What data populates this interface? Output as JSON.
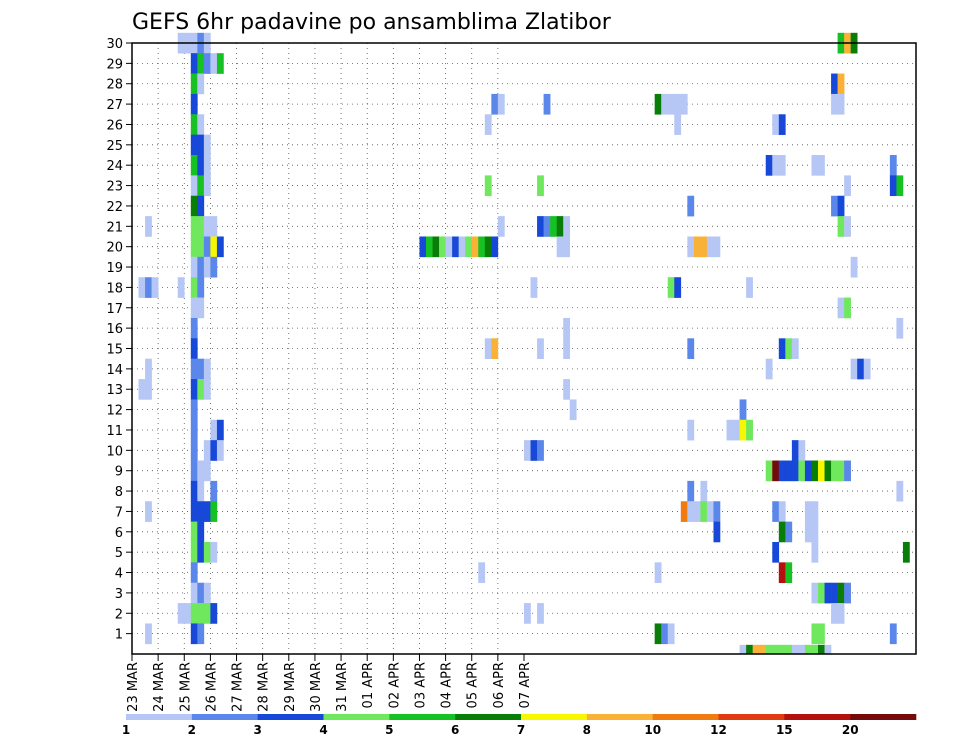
{
  "chart_data": {
    "type": "heatmap",
    "title": "GEFS 6hr padavine po ansamblima Zlatibor",
    "xlabel": "",
    "ylabel": "",
    "y_ticks": [
      "1",
      "2",
      "3",
      "4",
      "5",
      "6",
      "7",
      "8",
      "9",
      "10",
      "11",
      "12",
      "13",
      "14",
      "15",
      "16",
      "17",
      "18",
      "19",
      "20",
      "21",
      "22",
      "23",
      "24",
      "25",
      "26",
      "27",
      "28",
      "29",
      "30"
    ],
    "x_ticks": [
      "23 MAR",
      "24 MAR",
      "25 MAR",
      "26 MAR",
      "27 MAR",
      "28 MAR",
      "29 MAR",
      "30 MAR",
      "31 MAR",
      "01 APR",
      "02 APR",
      "03 APR",
      "04 APR",
      "05 APR",
      "06 APR",
      "07 APR"
    ],
    "x_unit": "6h steps from 23 MAR 00UTC (4 per day)",
    "grid": true,
    "colorbar": {
      "labels": [
        "1",
        "2",
        "3",
        "4",
        "5",
        "6",
        "7",
        "8",
        "10",
        "12",
        "15",
        "20"
      ],
      "colors": [
        "#b7c7f5",
        "#5b86ea",
        "#1748d8",
        "#6fe85e",
        "#16c124",
        "#087d08",
        "#f7f700",
        "#f9b237",
        "#f07b10",
        "#e03a10",
        "#b51010",
        "#750a0a"
      ]
    },
    "cells": [
      [
        7,
        30,
        1
      ],
      [
        8,
        30,
        1
      ],
      [
        9,
        30,
        1
      ],
      [
        10,
        30,
        2
      ],
      [
        11,
        30,
        1
      ],
      [
        108,
        30,
        5
      ],
      [
        109,
        30,
        8
      ],
      [
        110,
        30,
        6
      ],
      [
        9,
        29,
        3
      ],
      [
        10,
        29,
        5
      ],
      [
        11,
        29,
        2
      ],
      [
        12,
        29,
        1
      ],
      [
        13,
        29,
        5
      ],
      [
        9,
        28,
        5
      ],
      [
        10,
        28,
        1
      ],
      [
        107,
        28,
        3
      ],
      [
        108,
        28,
        8
      ],
      [
        9,
        27,
        3
      ],
      [
        55,
        27,
        2
      ],
      [
        56,
        27,
        1
      ],
      [
        63,
        27,
        2
      ],
      [
        80,
        27,
        6
      ],
      [
        81,
        27,
        1
      ],
      [
        82,
        27,
        1
      ],
      [
        83,
        27,
        1
      ],
      [
        84,
        27,
        1
      ],
      [
        107,
        27,
        1
      ],
      [
        108,
        27,
        1
      ],
      [
        9,
        26,
        5
      ],
      [
        10,
        26,
        1
      ],
      [
        54,
        26,
        1
      ],
      [
        83,
        26,
        1
      ],
      [
        98,
        26,
        1
      ],
      [
        99,
        26,
        3
      ],
      [
        9,
        25,
        3
      ],
      [
        10,
        25,
        3
      ],
      [
        11,
        25,
        1
      ],
      [
        9,
        24,
        5
      ],
      [
        10,
        24,
        3
      ],
      [
        11,
        24,
        1
      ],
      [
        97,
        24,
        3
      ],
      [
        98,
        24,
        1
      ],
      [
        99,
        24,
        1
      ],
      [
        104,
        24,
        1
      ],
      [
        105,
        24,
        1
      ],
      [
        116,
        24,
        2
      ],
      [
        9,
        23,
        1
      ],
      [
        10,
        23,
        5
      ],
      [
        11,
        23,
        1
      ],
      [
        54,
        23,
        4
      ],
      [
        62,
        23,
        4
      ],
      [
        109,
        23,
        1
      ],
      [
        116,
        23,
        3
      ],
      [
        117,
        23,
        5
      ],
      [
        9,
        22,
        6
      ],
      [
        10,
        22,
        3
      ],
      [
        85,
        22,
        2
      ],
      [
        107,
        22,
        2
      ],
      [
        108,
        22,
        3
      ],
      [
        2,
        21,
        1
      ],
      [
        9,
        21,
        4
      ],
      [
        10,
        21,
        4
      ],
      [
        11,
        21,
        1
      ],
      [
        12,
        21,
        1
      ],
      [
        56,
        21,
        1
      ],
      [
        62,
        21,
        3
      ],
      [
        63,
        21,
        2
      ],
      [
        64,
        21,
        5
      ],
      [
        65,
        21,
        6
      ],
      [
        66,
        21,
        1
      ],
      [
        108,
        21,
        4
      ],
      [
        109,
        21,
        1
      ],
      [
        9,
        20,
        4
      ],
      [
        10,
        20,
        4
      ],
      [
        11,
        20,
        2
      ],
      [
        12,
        20,
        7
      ],
      [
        13,
        20,
        3
      ],
      [
        44,
        20,
        3
      ],
      [
        45,
        20,
        5
      ],
      [
        46,
        20,
        6
      ],
      [
        47,
        20,
        4
      ],
      [
        48,
        20,
        1
      ],
      [
        49,
        20,
        3
      ],
      [
        50,
        20,
        1
      ],
      [
        51,
        20,
        4
      ],
      [
        52,
        20,
        8
      ],
      [
        53,
        20,
        5
      ],
      [
        54,
        20,
        6
      ],
      [
        55,
        20,
        3
      ],
      [
        65,
        20,
        1
      ],
      [
        66,
        20,
        1
      ],
      [
        85,
        20,
        1
      ],
      [
        86,
        20,
        8
      ],
      [
        87,
        20,
        8
      ],
      [
        88,
        20,
        1
      ],
      [
        89,
        20,
        1
      ],
      [
        9,
        19,
        1
      ],
      [
        10,
        19,
        2
      ],
      [
        11,
        19,
        1
      ],
      [
        12,
        19,
        2
      ],
      [
        110,
        19,
        1
      ],
      [
        1,
        18,
        1
      ],
      [
        2,
        18,
        2
      ],
      [
        3,
        18,
        1
      ],
      [
        7,
        18,
        1
      ],
      [
        9,
        18,
        4
      ],
      [
        10,
        18,
        2
      ],
      [
        61,
        18,
        1
      ],
      [
        82,
        18,
        4
      ],
      [
        83,
        18,
        3
      ],
      [
        94,
        18,
        1
      ],
      [
        9,
        17,
        1
      ],
      [
        10,
        17,
        1
      ],
      [
        108,
        17,
        1
      ],
      [
        109,
        17,
        4
      ],
      [
        9,
        16,
        2
      ],
      [
        66,
        16,
        1
      ],
      [
        117,
        16,
        1
      ],
      [
        9,
        15,
        3
      ],
      [
        54,
        15,
        1
      ],
      [
        55,
        15,
        8
      ],
      [
        62,
        15,
        1
      ],
      [
        66,
        15,
        1
      ],
      [
        85,
        15,
        2
      ],
      [
        99,
        15,
        3
      ],
      [
        100,
        15,
        4
      ],
      [
        101,
        15,
        1
      ],
      [
        2,
        14,
        1
      ],
      [
        9,
        14,
        2
      ],
      [
        10,
        14,
        2
      ],
      [
        11,
        14,
        1
      ],
      [
        97,
        14,
        1
      ],
      [
        110,
        14,
        1
      ],
      [
        111,
        14,
        3
      ],
      [
        112,
        14,
        1
      ],
      [
        1,
        13,
        1
      ],
      [
        2,
        13,
        1
      ],
      [
        9,
        13,
        3
      ],
      [
        10,
        13,
        4
      ],
      [
        11,
        13,
        1
      ],
      [
        66,
        13,
        1
      ],
      [
        9,
        12,
        2
      ],
      [
        67,
        12,
        1
      ],
      [
        93,
        12,
        2
      ],
      [
        9,
        11,
        2
      ],
      [
        12,
        11,
        1
      ],
      [
        13,
        11,
        3
      ],
      [
        85,
        11,
        1
      ],
      [
        91,
        11,
        1
      ],
      [
        92,
        11,
        1
      ],
      [
        93,
        11,
        7
      ],
      [
        94,
        11,
        4
      ],
      [
        9,
        10,
        2
      ],
      [
        11,
        10,
        1
      ],
      [
        12,
        10,
        3
      ],
      [
        13,
        10,
        1
      ],
      [
        60,
        10,
        1
      ],
      [
        61,
        10,
        3
      ],
      [
        62,
        10,
        2
      ],
      [
        101,
        10,
        3
      ],
      [
        102,
        10,
        1
      ],
      [
        9,
        9,
        2
      ],
      [
        10,
        9,
        1
      ],
      [
        11,
        9,
        1
      ],
      [
        97,
        9,
        4
      ],
      [
        98,
        9,
        12
      ],
      [
        99,
        9,
        3
      ],
      [
        100,
        9,
        3
      ],
      [
        101,
        9,
        3
      ],
      [
        102,
        9,
        4
      ],
      [
        103,
        9,
        3
      ],
      [
        104,
        9,
        6
      ],
      [
        105,
        9,
        7
      ],
      [
        106,
        9,
        6
      ],
      [
        107,
        9,
        4
      ],
      [
        108,
        9,
        4
      ],
      [
        109,
        9,
        2
      ],
      [
        9,
        8,
        3
      ],
      [
        10,
        8,
        1
      ],
      [
        12,
        8,
        2
      ],
      [
        85,
        8,
        2
      ],
      [
        87,
        8,
        1
      ],
      [
        117,
        8,
        1
      ],
      [
        2,
        7,
        1
      ],
      [
        9,
        7,
        3
      ],
      [
        10,
        7,
        3
      ],
      [
        11,
        7,
        3
      ],
      [
        12,
        7,
        5
      ],
      [
        84,
        7,
        9
      ],
      [
        85,
        7,
        1
      ],
      [
        86,
        7,
        1
      ],
      [
        87,
        7,
        4
      ],
      [
        88,
        7,
        1
      ],
      [
        89,
        7,
        2
      ],
      [
        98,
        7,
        2
      ],
      [
        99,
        7,
        1
      ],
      [
        103,
        7,
        1
      ],
      [
        104,
        7,
        1
      ],
      [
        9,
        6,
        4
      ],
      [
        10,
        6,
        3
      ],
      [
        89,
        6,
        3
      ],
      [
        99,
        6,
        6
      ],
      [
        100,
        6,
        2
      ],
      [
        103,
        6,
        1
      ],
      [
        104,
        6,
        1
      ],
      [
        9,
        5,
        4
      ],
      [
        10,
        5,
        3
      ],
      [
        11,
        5,
        4
      ],
      [
        12,
        5,
        1
      ],
      [
        98,
        5,
        3
      ],
      [
        104,
        5,
        1
      ],
      [
        118,
        5,
        6
      ],
      [
        9,
        4,
        2
      ],
      [
        53,
        4,
        1
      ],
      [
        80,
        4,
        1
      ],
      [
        99,
        4,
        11
      ],
      [
        100,
        4,
        5
      ],
      [
        9,
        3,
        1
      ],
      [
        10,
        3,
        2
      ],
      [
        11,
        3,
        1
      ],
      [
        104,
        3,
        1
      ],
      [
        105,
        3,
        4
      ],
      [
        106,
        3,
        3
      ],
      [
        107,
        3,
        3
      ],
      [
        108,
        3,
        6
      ],
      [
        109,
        3,
        2
      ],
      [
        7,
        2,
        1
      ],
      [
        8,
        2,
        1
      ],
      [
        9,
        2,
        4
      ],
      [
        10,
        2,
        4
      ],
      [
        11,
        2,
        4
      ],
      [
        12,
        2,
        3
      ],
      [
        60,
        2,
        1
      ],
      [
        62,
        2,
        1
      ],
      [
        107,
        2,
        1
      ],
      [
        108,
        2,
        1
      ],
      [
        2,
        1,
        1
      ],
      [
        9,
        1,
        3
      ],
      [
        10,
        1,
        2
      ],
      [
        80,
        1,
        6
      ],
      [
        81,
        1,
        2
      ],
      [
        82,
        1,
        1
      ],
      [
        104,
        1,
        4
      ],
      [
        105,
        1,
        4
      ],
      [
        116,
        1,
        2
      ],
      [
        93,
        0,
        1
      ],
      [
        94,
        0,
        6
      ],
      [
        95,
        0,
        8
      ],
      [
        96,
        0,
        8
      ],
      [
        97,
        0,
        4
      ],
      [
        98,
        0,
        4
      ],
      [
        99,
        0,
        4
      ],
      [
        100,
        0,
        4
      ],
      [
        101,
        0,
        1
      ],
      [
        102,
        0,
        1
      ],
      [
        103,
        0,
        4
      ],
      [
        104,
        0,
        4
      ],
      [
        105,
        0,
        6
      ],
      [
        106,
        0,
        1
      ]
    ]
  }
}
